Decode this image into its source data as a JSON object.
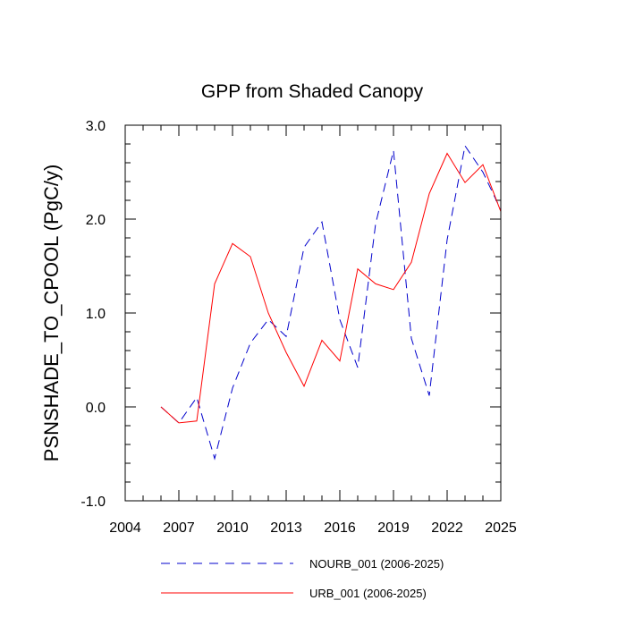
{
  "chart_data": {
    "type": "line",
    "title": "GPP from Shaded Canopy",
    "xlabel": "",
    "ylabel": "PSNSHADE_TO_CPOOL  (PgC/y)",
    "xlim": [
      2004,
      2025
    ],
    "ylim": [
      -1.0,
      3.0
    ],
    "x_ticks": [
      2004,
      2007,
      2010,
      2013,
      2016,
      2019,
      2022,
      2025
    ],
    "y_ticks": [
      -1.0,
      0.0,
      1.0,
      2.0,
      3.0
    ],
    "y_tick_labels": [
      "-1.0",
      "0.0",
      "1.0",
      "2.0",
      "3.0"
    ],
    "x": [
      2006,
      2007,
      2008,
      2009,
      2010,
      2011,
      2012,
      2013,
      2014,
      2015,
      2016,
      2017,
      2018,
      2019,
      2020,
      2021,
      2022,
      2023,
      2024,
      2025
    ],
    "series": [
      {
        "name": "NOURB_001 (2006-2025)",
        "color": "#0000cc",
        "style": "dashed",
        "values": [
          0.0,
          -0.17,
          0.1,
          -0.55,
          0.2,
          0.68,
          0.93,
          0.75,
          1.7,
          1.97,
          0.93,
          0.42,
          1.95,
          2.73,
          0.73,
          0.12,
          1.78,
          2.78,
          2.5,
          2.1
        ]
      },
      {
        "name": "URB_001 (2006-2025)",
        "color": "#ff0000",
        "style": "solid",
        "values": [
          0.0,
          -0.17,
          -0.15,
          1.31,
          1.74,
          1.6,
          1.0,
          0.58,
          0.22,
          0.71,
          0.49,
          1.47,
          1.31,
          1.25,
          1.54,
          2.27,
          2.7,
          2.39,
          2.58,
          2.08
        ]
      }
    ],
    "legend_position": "bottom"
  }
}
